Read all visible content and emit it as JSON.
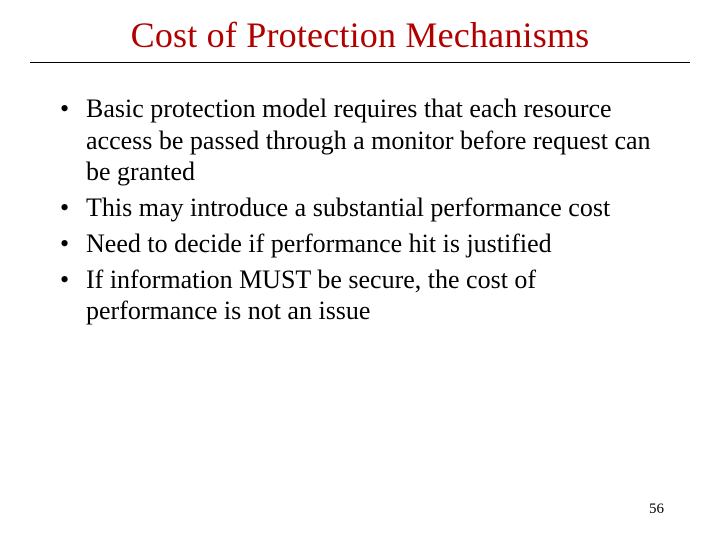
{
  "slide": {
    "title": "Cost of Protection Mechanisms",
    "bullets": [
      "Basic protection model requires that each resource access be passed through a monitor before request can be granted",
      "This may introduce a substantial performance cost",
      "Need to decide if performance hit is justified",
      "If information MUST be secure, the cost of performance is not an issue"
    ],
    "page_number": "56"
  },
  "colors": {
    "title_color": "#b00000",
    "text_color": "#000000",
    "background_color": "#ffffff",
    "underline_color": "#000000"
  },
  "typography": {
    "title_fontsize": 36,
    "body_fontsize": 26,
    "page_number_fontsize": 15,
    "font_family": "Times New Roman"
  }
}
